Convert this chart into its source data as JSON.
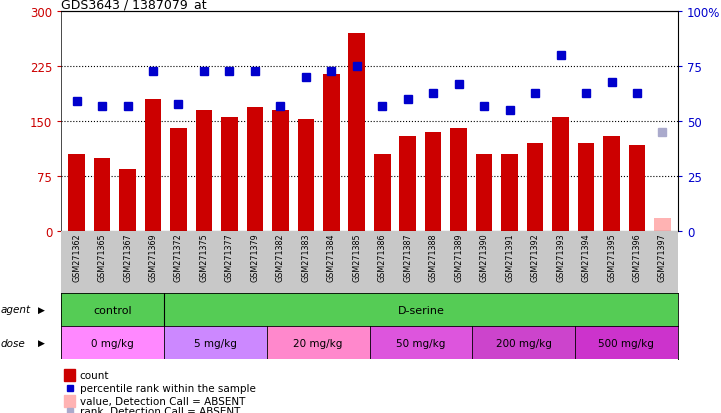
{
  "title": "GDS3643 / 1387079_at",
  "samples": [
    "GSM271362",
    "GSM271365",
    "GSM271367",
    "GSM271369",
    "GSM271372",
    "GSM271375",
    "GSM271377",
    "GSM271379",
    "GSM271382",
    "GSM271383",
    "GSM271384",
    "GSM271385",
    "GSM271386",
    "GSM271387",
    "GSM271388",
    "GSM271389",
    "GSM271390",
    "GSM271391",
    "GSM271392",
    "GSM271393",
    "GSM271394",
    "GSM271395",
    "GSM271396",
    "GSM271397"
  ],
  "bar_values": [
    105,
    100,
    85,
    180,
    140,
    165,
    155,
    170,
    165,
    153,
    215,
    270,
    105,
    130,
    135,
    140,
    105,
    105,
    120,
    155,
    120,
    130,
    118,
    18
  ],
  "bar_absent": [
    false,
    false,
    false,
    false,
    false,
    false,
    false,
    false,
    false,
    false,
    false,
    false,
    false,
    false,
    false,
    false,
    false,
    false,
    false,
    false,
    false,
    false,
    false,
    true
  ],
  "rank_values": [
    59,
    57,
    57,
    73,
    58,
    73,
    73,
    73,
    57,
    70,
    73,
    75,
    57,
    60,
    63,
    67,
    57,
    55,
    63,
    80,
    63,
    68,
    63,
    45
  ],
  "rank_absent": [
    false,
    false,
    false,
    false,
    false,
    false,
    false,
    false,
    false,
    false,
    false,
    false,
    false,
    false,
    false,
    false,
    false,
    false,
    false,
    false,
    false,
    false,
    false,
    true
  ],
  "ylim_left": [
    0,
    300
  ],
  "ylim_right": [
    0,
    100
  ],
  "yticks_left": [
    0,
    75,
    150,
    225,
    300
  ],
  "yticks_right": [
    0,
    25,
    50,
    75,
    100
  ],
  "bar_color": "#cc0000",
  "bar_absent_color": "#ffb3b3",
  "rank_color": "#0000cc",
  "rank_absent_color": "#aaaacc",
  "agent_color": "#55cc55",
  "dose_colors": [
    "#ff88ff",
    "#cc88ff",
    "#ff88cc",
    "#dd55dd",
    "#cc44cc",
    "#cc33cc"
  ],
  "dose_labels": [
    "0 mg/kg",
    "5 mg/kg",
    "20 mg/kg",
    "50 mg/kg",
    "200 mg/kg",
    "500 mg/kg"
  ],
  "dose_starts": [
    0,
    4,
    8,
    12,
    16,
    20
  ],
  "dose_ends": [
    4,
    8,
    12,
    16,
    20,
    24
  ],
  "bg_color": "#ffffff",
  "tick_label_bg": "#c8c8c8",
  "grid_yticks": [
    75,
    150,
    225
  ]
}
